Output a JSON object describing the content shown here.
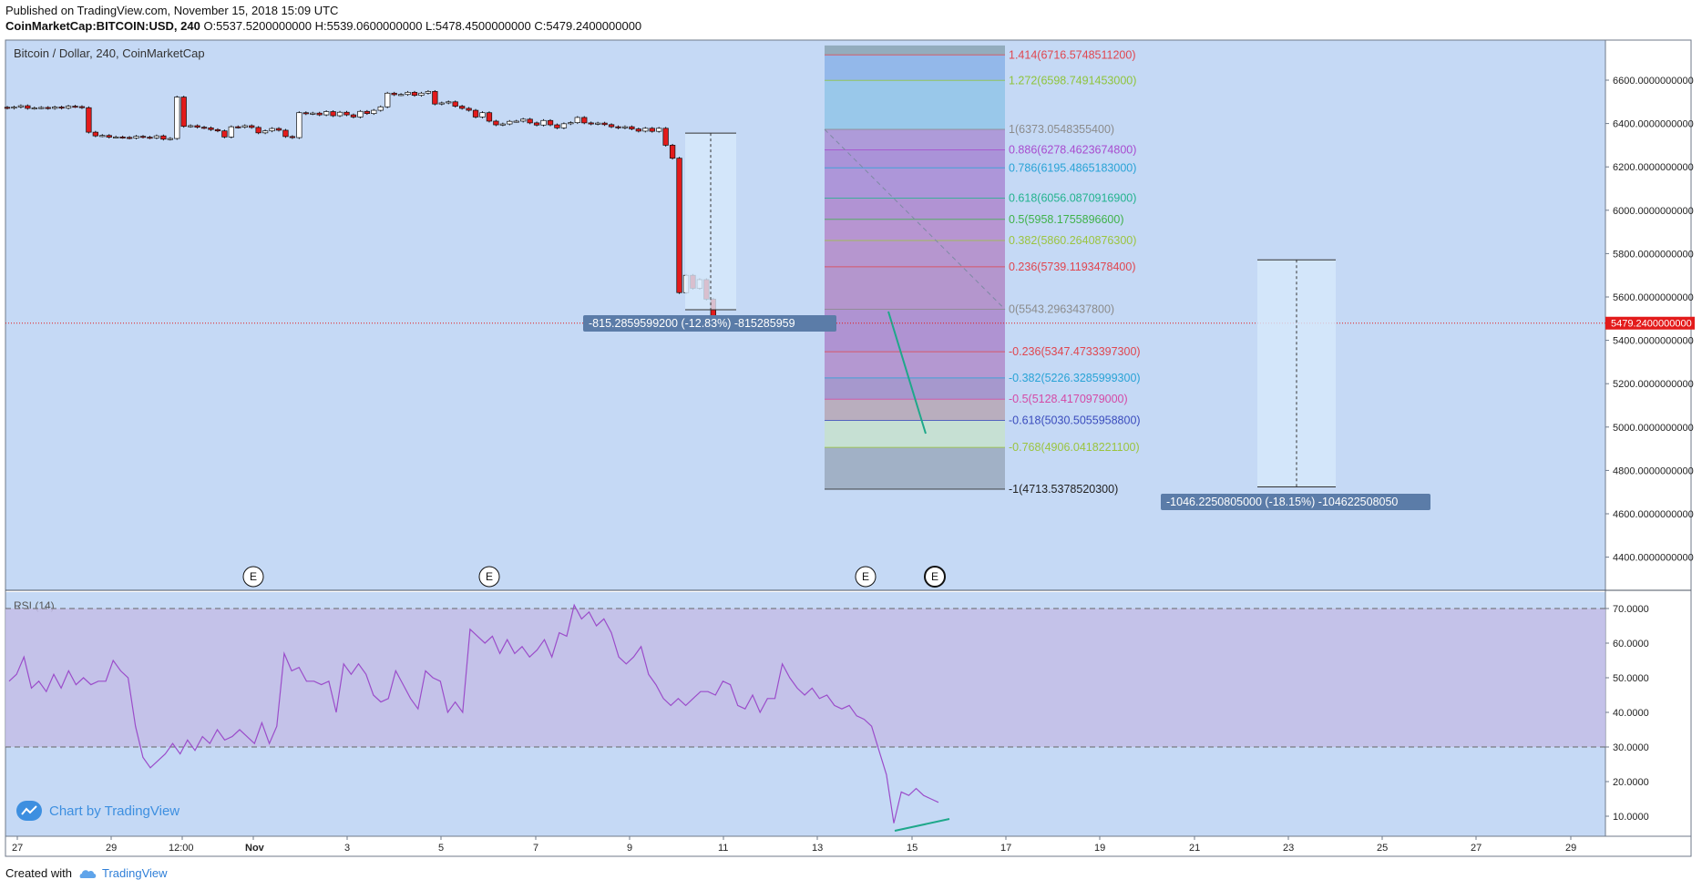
{
  "header": {
    "published": "Published on TradingView.com, November 15, 2018 15:09 UTC",
    "symbol": "CoinMarketCap:BITCOIN:USD, 240",
    "ohlc": "O:5537.5200000000 H:5539.0600000000 L:5478.4500000000 C:5479.2400000000"
  },
  "legend": {
    "main": "Bitcoin / Dollar, 240, CoinMarketCap",
    "rsi": "RSI (14)"
  },
  "colors": {
    "background": "#c5d9f5",
    "up": "#ffffff",
    "down": "#e31b1b",
    "rsi_line": "#9b4dca",
    "rsi_band": "#c3bde6",
    "fib_line": "#1ea88a"
  },
  "chart_data": [
    {
      "type": "candlestick",
      "title": "Bitcoin / Dollar, 240, CoinMarketCap",
      "ylim": [
        4200,
        6760
      ],
      "y_ticks": [
        "6600.0000000000",
        "6400.0000000000",
        "6200.0000000000",
        "6000.0000000000",
        "5800.0000000000",
        "5600.0000000000",
        "5400.0000000000",
        "5200.0000000000",
        "5000.0000000000",
        "4800.0000000000",
        "4600.0000000000",
        "4400.0000000000"
      ],
      "x_ticks": [
        "27",
        "29",
        "12:00",
        "Nov",
        "3",
        "5",
        "7",
        "9",
        "11",
        "13",
        "15",
        "17",
        "19",
        "21",
        "23",
        "25",
        "27",
        "29"
      ],
      "last_price": "5479.2400000000",
      "close_values": [
        6471,
        6476,
        6482,
        6470,
        6472,
        6474,
        6470,
        6476,
        6471,
        6480,
        6478,
        6473,
        6360,
        6343,
        6345,
        6337,
        6338,
        6336,
        6333,
        6341,
        6337,
        6334,
        6343,
        6328,
        6331,
        6522,
        6387,
        6390,
        6383,
        6380,
        6372,
        6366,
        6338,
        6385,
        6383,
        6390,
        6382,
        6357,
        6366,
        6377,
        6369,
        6340,
        6335,
        6450,
        6445,
        6448,
        6440,
        6455,
        6436,
        6452,
        6440,
        6430,
        6456,
        6446,
        6461,
        6477,
        6540,
        6533,
        6534,
        6544,
        6530,
        6540,
        6548,
        6490,
        6495,
        6500,
        6480,
        6470,
        6461,
        6430,
        6450,
        6411,
        6394,
        6398,
        6410,
        6411,
        6420,
        6403,
        6393,
        6414,
        6394,
        6380,
        6399,
        6404,
        6428,
        6403,
        6398,
        6402,
        6395,
        6385,
        6380,
        6385,
        6375,
        6365,
        6378,
        6364,
        6378,
        6300,
        6240,
        5620,
        5700,
        5640,
        5680,
        5590,
        5509,
        5479
      ],
      "event_markers": [
        "E",
        "E",
        "E",
        "E"
      ],
      "measure_labels": [
        "-815.2859599200 (-12.83%) -815285959",
        "-1046.2250805000 (-18.15%) -104622508050"
      ],
      "fib_levels": [
        {
          "label": "1.414(6716.5748511200)",
          "value": 6716.57,
          "color": "#e0464f"
        },
        {
          "label": "1.272(6598.7491453000)",
          "value": 6598.75,
          "color": "#8fc43b"
        },
        {
          "label": "1(6373.0548355400)",
          "value": 6373.05,
          "color": "#8c8c8c"
        },
        {
          "label": "0.886(6278.4623674800)",
          "value": 6278.46,
          "color": "#a84ccf"
        },
        {
          "label": "0.786(6195.4865183000)",
          "value": 6195.49,
          "color": "#29a3d6"
        },
        {
          "label": "0.618(6056.0870916900)",
          "value": 6056.09,
          "color": "#23b38f"
        },
        {
          "label": "0.5(5958.1755896600)",
          "value": 5958.18,
          "color": "#3fb24a"
        },
        {
          "label": "0.382(5860.2640876300)",
          "value": 5860.26,
          "color": "#9bc43f"
        },
        {
          "label": "0.236(5739.1193478400)",
          "value": 5739.12,
          "color": "#e0464f"
        },
        {
          "label": "0(5543.2963437800)",
          "value": 5543.3,
          "color": "#8c8c8c"
        },
        {
          "label": "-0.236(5347.4733397300)",
          "value": 5347.47,
          "color": "#e0464f"
        },
        {
          "label": "-0.382(5226.3285999300)",
          "value": 5226.33,
          "color": "#29a3d6"
        },
        {
          "label": "-0.5(5128.4170979000)",
          "value": 5128.42,
          "color": "#d44aa6"
        },
        {
          "label": "-0.618(5030.5055958800)",
          "value": 5030.51,
          "color": "#3a4cbd"
        },
        {
          "label": "-0.768(4906.0418221100)",
          "value": 4906.04,
          "color": "#9bc43f"
        },
        {
          "label": "-1(4713.5378520300)",
          "value": 4713.54,
          "color": "#222222"
        }
      ]
    },
    {
      "type": "line",
      "title": "RSI (14)",
      "ylim": [
        2,
        72
      ],
      "y_ticks": [
        "70.0000",
        "60.0000",
        "50.0000",
        "40.0000",
        "30.0000",
        "20.0000",
        "10.0000"
      ],
      "bands": [
        70,
        30
      ],
      "values": [
        49,
        51,
        56,
        47,
        49,
        46,
        51,
        47,
        52,
        48,
        50,
        48,
        49,
        49,
        55,
        52,
        50,
        36,
        27,
        24,
        26,
        28,
        31,
        28,
        32,
        29,
        33,
        31,
        35,
        32,
        33,
        35,
        33,
        31,
        37,
        31,
        36,
        57,
        52,
        53,
        49,
        49,
        48,
        49,
        40,
        54,
        51,
        54,
        51,
        45,
        43,
        44,
        52,
        48,
        44,
        41,
        52,
        50,
        49,
        40,
        43,
        40,
        64,
        62,
        60,
        62,
        57,
        61,
        57,
        59,
        56,
        58,
        61,
        56,
        63,
        62,
        71,
        67,
        69,
        65,
        67,
        63,
        56,
        54,
        56,
        59,
        51,
        48,
        44,
        42,
        44,
        42,
        44,
        46,
        46,
        45,
        49,
        48,
        42,
        41,
        45,
        40,
        44,
        44,
        54,
        50,
        47,
        45,
        47,
        44,
        45,
        42,
        41,
        42,
        39,
        38,
        36,
        29,
        22,
        8,
        17,
        16,
        18,
        16,
        15,
        14
      ]
    }
  ],
  "watermark": "Chart by TradingView",
  "footer": {
    "created": "Created with",
    "brand": "TradingView"
  }
}
